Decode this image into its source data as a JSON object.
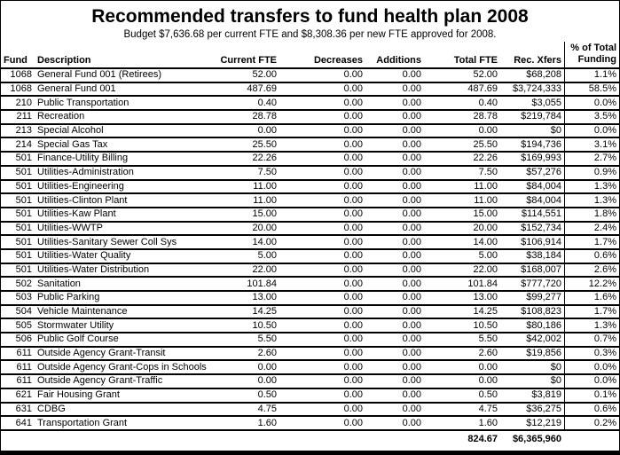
{
  "title": "Recommended transfers to fund health plan 2008",
  "subtitle": "Budget $7,636.68 per current FTE and $8,308.36 per new FTE approved for 2008.",
  "columns": [
    "Fund",
    "Description",
    "Current FTE",
    "Decreases",
    "Additions",
    "Total FTE",
    "Rec. Xfers",
    "% of Total\nFunding"
  ],
  "rows": [
    [
      "1068",
      "General Fund 001 (Retirees)",
      "52.00",
      "0.00",
      "0.00",
      "52.00",
      "$68,208",
      "1.1%"
    ],
    [
      "1068",
      "General Fund 001",
      "487.69",
      "0.00",
      "0.00",
      "487.69",
      "$3,724,333",
      "58.5%"
    ],
    [
      "210",
      "Public Transportation",
      "0.40",
      "0.00",
      "0.00",
      "0.40",
      "$3,055",
      "0.0%"
    ],
    [
      "211",
      "Recreation",
      "28.78",
      "0.00",
      "0.00",
      "28.78",
      "$219,784",
      "3.5%"
    ],
    [
      "213",
      "Special Alcohol",
      "0.00",
      "0.00",
      "0.00",
      "0.00",
      "$0",
      "0.0%"
    ],
    [
      "214",
      "Special Gas Tax",
      "25.50",
      "0.00",
      "0.00",
      "25.50",
      "$194,736",
      "3.1%"
    ],
    [
      "501",
      "Finance-Utility Billing",
      "22.26",
      "0.00",
      "0.00",
      "22.26",
      "$169,993",
      "2.7%"
    ],
    [
      "501",
      "Utilities-Administration",
      "7.50",
      "0.00",
      "0.00",
      "7.50",
      "$57,276",
      "0.9%"
    ],
    [
      "501",
      "Utilities-Engineering",
      "11.00",
      "0.00",
      "0.00",
      "11.00",
      "$84,004",
      "1.3%"
    ],
    [
      "501",
      "Utilities-Clinton Plant",
      "11.00",
      "0.00",
      "0.00",
      "11.00",
      "$84,004",
      "1.3%"
    ],
    [
      "501",
      "Utilities-Kaw Plant",
      "15.00",
      "0.00",
      "0.00",
      "15.00",
      "$114,551",
      "1.8%"
    ],
    [
      "501",
      "Utilities-WWTP",
      "20.00",
      "0.00",
      "0.00",
      "20.00",
      "$152,734",
      "2.4%"
    ],
    [
      "501",
      "Utilities-Sanitary Sewer Coll Sys",
      "14.00",
      "0.00",
      "0.00",
      "14.00",
      "$106,914",
      "1.7%"
    ],
    [
      "501",
      "Utilities-Water Quality",
      "5.00",
      "0.00",
      "0.00",
      "5.00",
      "$38,184",
      "0.6%"
    ],
    [
      "501",
      "Utilities-Water Distribution",
      "22.00",
      "0.00",
      "0.00",
      "22.00",
      "$168,007",
      "2.6%"
    ],
    [
      "502",
      "Sanitation",
      "101.84",
      "0.00",
      "0.00",
      "101.84",
      "$777,720",
      "12.2%"
    ],
    [
      "503",
      "Public Parking",
      "13.00",
      "0.00",
      "0.00",
      "13.00",
      "$99,277",
      "1.6%"
    ],
    [
      "504",
      "Vehicle Maintenance",
      "14.25",
      "0.00",
      "0.00",
      "14.25",
      "$108,823",
      "1.7%"
    ],
    [
      "505",
      "Stormwater Utility",
      "10.50",
      "0.00",
      "0.00",
      "10.50",
      "$80,186",
      "1.3%"
    ],
    [
      "506",
      "Public Golf Course",
      "5.50",
      "0.00",
      "0.00",
      "5.50",
      "$42,002",
      "0.7%"
    ],
    [
      "611",
      "Outside Agency Grant-Transit",
      "2.60",
      "0.00",
      "0.00",
      "2.60",
      "$19,856",
      "0.3%"
    ],
    [
      "611",
      "Outside Agency Grant-Cops in Schools",
      "0.00",
      "0.00",
      "0.00",
      "0.00",
      "$0",
      "0.0%"
    ],
    [
      "611",
      "Outside Agency Grant-Traffic",
      "0.00",
      "0.00",
      "0.00",
      "0.00",
      "$0",
      "0.0%"
    ],
    [
      "621",
      "Fair Housing Grant",
      "0.50",
      "0.00",
      "0.00",
      "0.50",
      "$3,819",
      "0.1%"
    ],
    [
      "631",
      "CDBG",
      "4.75",
      "0.00",
      "0.00",
      "4.75",
      "$36,275",
      "0.6%"
    ],
    [
      "641",
      "Transportation Grant",
      "1.60",
      "0.00",
      "0.00",
      "1.60",
      "$12,219",
      "0.2%"
    ]
  ],
  "totals": {
    "total_fte": "824.67",
    "rec_xfers": "$6,365,960"
  },
  "colors": {
    "background": "#ffffff",
    "text": "#000000",
    "border": "#000000"
  }
}
